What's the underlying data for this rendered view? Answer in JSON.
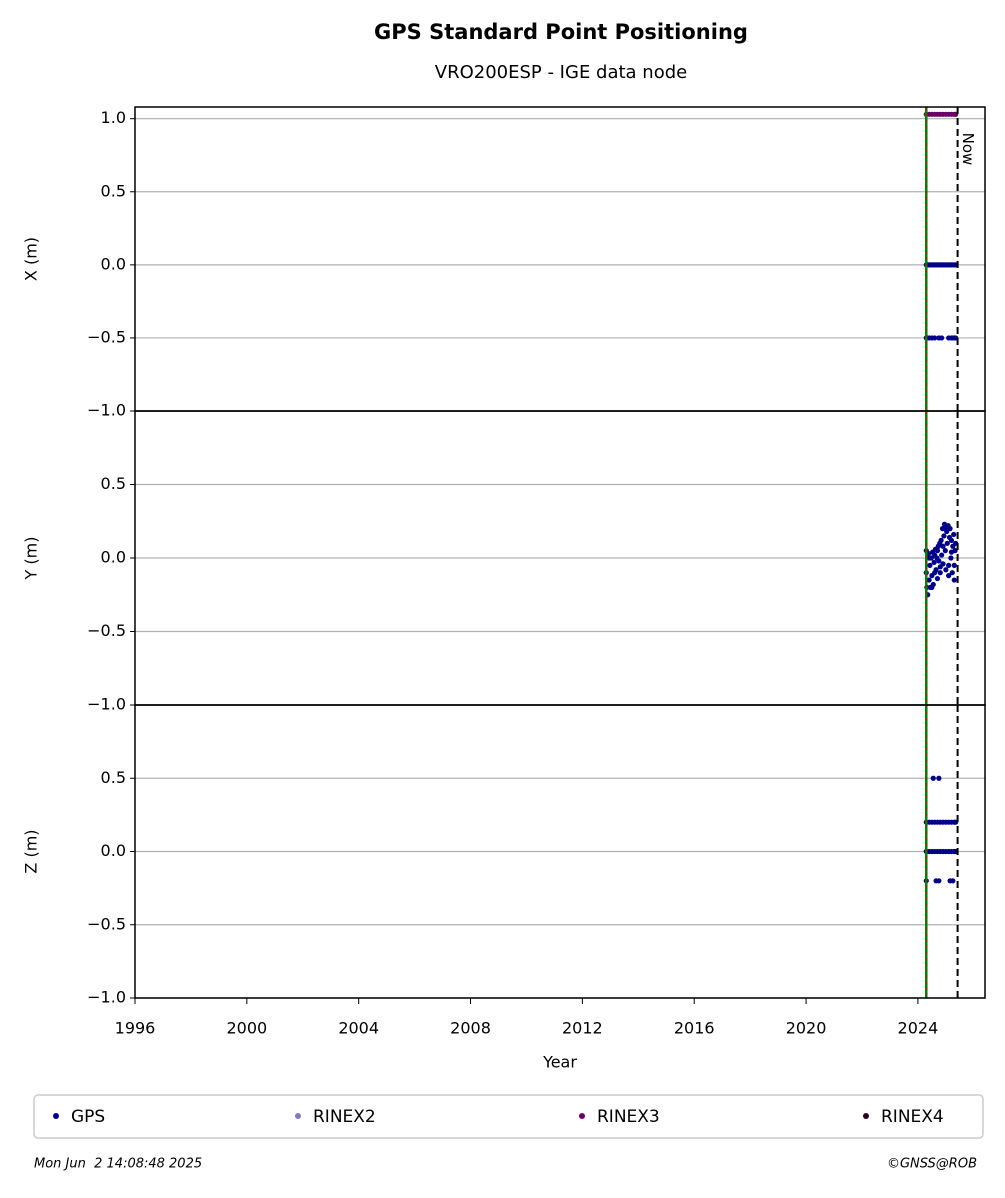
{
  "title": "GPS Standard Point Positioning",
  "subtitle": "VRO200ESP - IGE data node",
  "start_line": 2024.3,
  "now_line": 2025.42,
  "now_label": "Now",
  "footer_left": "Mon Jun  2 14:08:48 2025",
  "footer_right": "©GNSS@ROB",
  "chart_data": [
    {
      "type": "scatter",
      "ylabel": "X (m)",
      "xlim": [
        1996,
        2026.4
      ],
      "ylim": [
        -1,
        1.08
      ],
      "yticks": [
        {
          "value": -1,
          "label": "−1.0"
        },
        {
          "value": -0.5,
          "label": "−0.5"
        },
        {
          "value": 0,
          "label": "0.0"
        },
        {
          "value": 0.5,
          "label": "0.5"
        },
        {
          "value": 1,
          "label": "1.0"
        }
      ],
      "grid": true,
      "series": [
        {
          "name": "GPS",
          "color": "#00008b",
          "x": [
            2024.3,
            2024.35,
            2024.4,
            2024.45,
            2024.5,
            2024.55,
            2024.6,
            2024.65,
            2024.7,
            2024.75,
            2024.8,
            2024.85,
            2024.9,
            2024.95,
            2025.0,
            2025.05,
            2025.1,
            2025.15,
            2025.2,
            2025.25,
            2025.3,
            2025.35,
            2024.3,
            2024.35,
            2024.4,
            2024.5,
            2024.6,
            2024.75,
            2024.85,
            2025.1,
            2025.2,
            2025.25,
            2025.3,
            2025.35
          ],
          "values": [
            0,
            0,
            0,
            0,
            0,
            0,
            0,
            0,
            0,
            0,
            0,
            0,
            0,
            0,
            0,
            0,
            0,
            0,
            0,
            0,
            0,
            0,
            -0.5,
            -0.5,
            -0.5,
            -0.5,
            -0.5,
            -0.5,
            -0.5,
            -0.5,
            -0.5,
            -0.5,
            -0.5,
            -0.5
          ]
        },
        {
          "name": "RINEX2",
          "color": "#7b7bc8",
          "x": [],
          "values": []
        },
        {
          "name": "RINEX3",
          "color": "#660066",
          "x": [
            2024.3,
            2024.4,
            2024.5,
            2024.6,
            2024.7,
            2024.8,
            2024.9,
            2025.0,
            2025.1,
            2025.2,
            2025.3,
            2025.35
          ],
          "values": [
            1.03,
            1.03,
            1.03,
            1.03,
            1.03,
            1.03,
            1.03,
            1.03,
            1.03,
            1.03,
            1.03,
            1.03
          ]
        },
        {
          "name": "RINEX4",
          "color": "#2a0020",
          "x": [],
          "values": []
        }
      ]
    },
    {
      "type": "scatter",
      "ylabel": "Y (m)",
      "xlim": [
        1996,
        2026.4
      ],
      "ylim": [
        -1,
        1
      ],
      "yticks": [
        {
          "value": -1,
          "label": "−1.0"
        },
        {
          "value": -0.5,
          "label": "−0.5"
        },
        {
          "value": 0,
          "label": "0.0"
        },
        {
          "value": 0.5,
          "label": "0.5"
        }
      ],
      "grid": true,
      "series": [
        {
          "color": "#00008b",
          "x": [
            2024.3,
            2024.32,
            2024.35,
            2024.38,
            2024.4,
            2024.43,
            2024.45,
            2024.48,
            2024.5,
            2024.53,
            2024.55,
            2024.58,
            2024.6,
            2024.63,
            2024.65,
            2024.68,
            2024.7,
            2024.73,
            2024.75,
            2024.78,
            2024.8,
            2024.83,
            2024.85,
            2024.88,
            2024.9,
            2024.93,
            2024.95,
            2024.98,
            2025.0,
            2025.03,
            2025.05,
            2025.08,
            2025.1,
            2025.13,
            2025.15,
            2025.18,
            2025.2,
            2025.23,
            2025.25,
            2025.28,
            2025.3,
            2025.33,
            2025.35,
            2024.3,
            2024.4,
            2024.5,
            2024.6,
            2024.7,
            2024.8,
            2024.9,
            2025.0,
            2025.1,
            2025.2,
            2025.3
          ],
          "values": [
            0.05,
            -0.2,
            -0.25,
            0.03,
            -0.15,
            -0.05,
            -0.2,
            0.0,
            -0.12,
            0.04,
            -0.18,
            -0.03,
            -0.1,
            0.06,
            -0.08,
            0.0,
            -0.14,
            0.08,
            -0.02,
            0.1,
            -0.06,
            0.12,
            0.02,
            0.2,
            -0.04,
            0.15,
            0.23,
            0.05,
            -0.08,
            0.18,
            0.1,
            0.22,
            -0.05,
            0.14,
            0.2,
            0.0,
            0.12,
            -0.1,
            0.08,
            0.16,
            -0.15,
            0.05,
            0.1,
            -0.1,
            0.0,
            -0.2,
            0.02,
            0.05,
            -0.1,
            0.08,
            0.2,
            -0.12,
            0.04,
            -0.05
          ]
        }
      ]
    },
    {
      "type": "scatter",
      "ylabel": "Z (m)",
      "xlabel": "Year",
      "xlim": [
        1996,
        2026.4
      ],
      "ylim": [
        -1,
        1
      ],
      "xticks": [
        1996,
        2000,
        2004,
        2008,
        2012,
        2016,
        2020,
        2024
      ],
      "yticks": [
        {
          "value": -1,
          "label": "−1.0"
        },
        {
          "value": -0.5,
          "label": "−0.5"
        },
        {
          "value": 0,
          "label": "0.0"
        },
        {
          "value": 0.5,
          "label": "0.5"
        }
      ],
      "grid": true,
      "series": [
        {
          "color": "#00008b",
          "x": [
            2024.3,
            2024.4,
            2024.5,
            2024.6,
            2024.7,
            2024.8,
            2024.9,
            2025.0,
            2025.1,
            2025.2,
            2025.3,
            2025.35,
            2024.3,
            2024.4,
            2024.5,
            2024.6,
            2024.7,
            2024.8,
            2024.9,
            2025.0,
            2025.1,
            2025.2,
            2025.3,
            2025.35,
            2024.3,
            2024.65,
            2024.75,
            2025.15,
            2025.25,
            2024.55,
            2024.75
          ],
          "values": [
            0.2,
            0.2,
            0.2,
            0.2,
            0.2,
            0.2,
            0.2,
            0.2,
            0.2,
            0.2,
            0.2,
            0.2,
            0,
            0,
            0,
            0,
            0,
            0,
            0,
            0,
            0,
            0,
            0,
            0,
            -0.2,
            -0.2,
            -0.2,
            -0.2,
            -0.2,
            0.5,
            0.5
          ]
        }
      ]
    }
  ]
}
